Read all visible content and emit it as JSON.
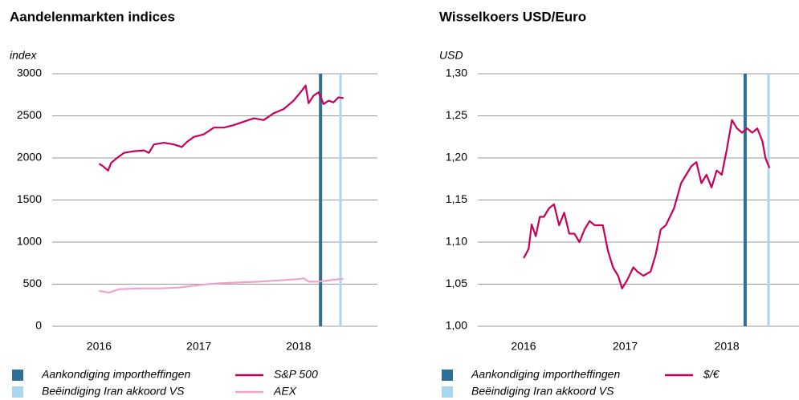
{
  "chart_data": [
    {
      "type": "line",
      "title": "Aandelenmarkten indices",
      "ylabel": "index",
      "xlim": [
        2015.53,
        2018.79
      ],
      "xticks": [
        2016,
        2017,
        2018
      ],
      "ylim": [
        0,
        3000
      ],
      "yticks": [
        0,
        500,
        1000,
        1500,
        2000,
        2500,
        3000
      ],
      "grid": true,
      "events": [
        {
          "name": "Aankondiging importheffingen",
          "color": "#2e6f98",
          "x": 2018.22
        },
        {
          "name": "Beëindiging Iran akkoord VS",
          "color": "#a9d8ee",
          "x": 2018.42
        }
      ],
      "series": [
        {
          "name": "S&P 500",
          "color": "#c8005a",
          "x": [
            2016.0,
            2016.03,
            2016.06,
            2016.09,
            2016.12,
            2016.18,
            2016.25,
            2016.35,
            2016.45,
            2016.5,
            2016.55,
            2016.65,
            2016.75,
            2016.83,
            2016.88,
            2016.95,
            2017.05,
            2017.15,
            2017.25,
            2017.35,
            2017.45,
            2017.55,
            2017.65,
            2017.75,
            2017.85,
            2017.95,
            2018.02,
            2018.07,
            2018.1,
            2018.15,
            2018.2,
            2018.25,
            2018.3,
            2018.35,
            2018.4,
            2018.45
          ],
          "values": [
            1930,
            1910,
            1880,
            1850,
            1940,
            2000,
            2060,
            2080,
            2090,
            2060,
            2160,
            2180,
            2160,
            2130,
            2190,
            2250,
            2280,
            2360,
            2360,
            2390,
            2430,
            2470,
            2450,
            2530,
            2580,
            2680,
            2780,
            2860,
            2650,
            2740,
            2780,
            2640,
            2680,
            2660,
            2720,
            2710
          ]
        },
        {
          "name": "AEX",
          "color": "#f0a3c8",
          "x": [
            2016.0,
            2016.1,
            2016.2,
            2016.4,
            2016.6,
            2016.8,
            2017.0,
            2017.2,
            2017.4,
            2017.6,
            2017.8,
            2018.0,
            2018.05,
            2018.1,
            2018.2,
            2018.3,
            2018.45
          ],
          "values": [
            420,
            400,
            440,
            450,
            450,
            460,
            490,
            510,
            520,
            530,
            545,
            560,
            570,
            530,
            530,
            545,
            565
          ]
        }
      ]
    },
    {
      "type": "line",
      "title": "Wisselkoers USD/Euro",
      "ylabel": "USD",
      "xlim": [
        2015.55,
        2018.71
      ],
      "xticks": [
        2016,
        2017,
        2018
      ],
      "ylim": [
        1.0,
        1.3
      ],
      "yticks": [
        {
          "value": 1.0,
          "label": "1,00"
        },
        {
          "value": 1.05,
          "label": "1,05"
        },
        {
          "value": 1.1,
          "label": "1,10"
        },
        {
          "value": 1.15,
          "label": "1,15"
        },
        {
          "value": 1.2,
          "label": "1,20"
        },
        {
          "value": 1.25,
          "label": "1,25"
        },
        {
          "value": 1.3,
          "label": "1,30"
        }
      ],
      "grid": true,
      "events": [
        {
          "name": "Aankondiging importheffingen",
          "color": "#2e6f98",
          "x": 2018.18
        },
        {
          "name": "Beëindiging Iran akkoord VS",
          "color": "#a9d8ee",
          "x": 2018.41
        }
      ],
      "series": [
        {
          "name": "$/€",
          "color": "#c8005a",
          "x": [
            2016.0,
            2016.02,
            2016.05,
            2016.08,
            2016.12,
            2016.16,
            2016.2,
            2016.25,
            2016.3,
            2016.35,
            2016.4,
            2016.45,
            2016.5,
            2016.55,
            2016.6,
            2016.65,
            2016.7,
            2016.78,
            2016.83,
            2016.88,
            2016.93,
            2016.97,
            2017.02,
            2017.08,
            2017.12,
            2017.18,
            2017.25,
            2017.3,
            2017.35,
            2017.4,
            2017.48,
            2017.55,
            2017.6,
            2017.65,
            2017.7,
            2017.75,
            2017.8,
            2017.85,
            2017.9,
            2017.95,
            2018.0,
            2018.05,
            2018.1,
            2018.15,
            2018.2,
            2018.25,
            2018.3,
            2018.35,
            2018.38,
            2018.42
          ],
          "values": [
            1.081,
            1.085,
            1.092,
            1.121,
            1.107,
            1.13,
            1.13,
            1.14,
            1.145,
            1.12,
            1.135,
            1.11,
            1.11,
            1.1,
            1.115,
            1.125,
            1.12,
            1.12,
            1.09,
            1.07,
            1.06,
            1.045,
            1.055,
            1.07,
            1.065,
            1.06,
            1.065,
            1.085,
            1.115,
            1.12,
            1.14,
            1.17,
            1.18,
            1.19,
            1.195,
            1.17,
            1.18,
            1.165,
            1.185,
            1.18,
            1.21,
            1.245,
            1.235,
            1.23,
            1.235,
            1.23,
            1.235,
            1.22,
            1.2,
            1.188
          ]
        }
      ]
    }
  ]
}
